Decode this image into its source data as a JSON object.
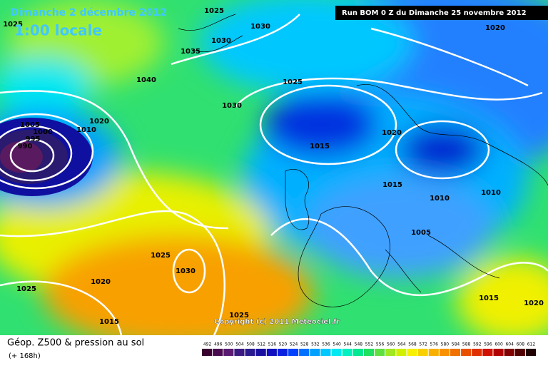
{
  "header": {
    "date": "Dimanche 2 décembre 2012",
    "time": "1:00 locale",
    "run": "Run BOM 0 Z du Dimanche 25 novembre 2012"
  },
  "isobar_labels": [
    1025,
    1025,
    1030,
    1030,
    1035,
    1040,
    1030,
    1025,
    1020,
    1020,
    1010,
    1005,
    1000,
    995,
    990,
    1020,
    1015,
    1015,
    1010,
    1010,
    1005,
    1025,
    1030,
    1020,
    1025,
    1015,
    1025,
    1015,
    1020
  ],
  "copyright": "Copyright (c) 2011 Meteociel.fr",
  "legend": {
    "title": "Géop. Z500 & pression au sol",
    "subtitle": "(+ 168h)",
    "scale": [
      492,
      496,
      500,
      504,
      508,
      512,
      516,
      520,
      524,
      528,
      532,
      536,
      540,
      544,
      548,
      552,
      556,
      560,
      564,
      568,
      572,
      576,
      580,
      584,
      588,
      592,
      596,
      600,
      604,
      608,
      612
    ],
    "colors": [
      "#3a0030",
      "#4a0a50",
      "#5a1a70",
      "#3a1a80",
      "#2a1a90",
      "#1a10a0",
      "#1010c0",
      "#0a20e0",
      "#0040ff",
      "#0070ff",
      "#00a0ff",
      "#00c8ff",
      "#00e8f0",
      "#00f0c0",
      "#00e890",
      "#20e060",
      "#60e040",
      "#a0e820",
      "#d0f000",
      "#f8f000",
      "#f8d000",
      "#f8b000",
      "#f89000",
      "#f07000",
      "#e85000",
      "#e03000",
      "#d01000",
      "#b00000",
      "#800000",
      "#500000",
      "#200000"
    ]
  }
}
